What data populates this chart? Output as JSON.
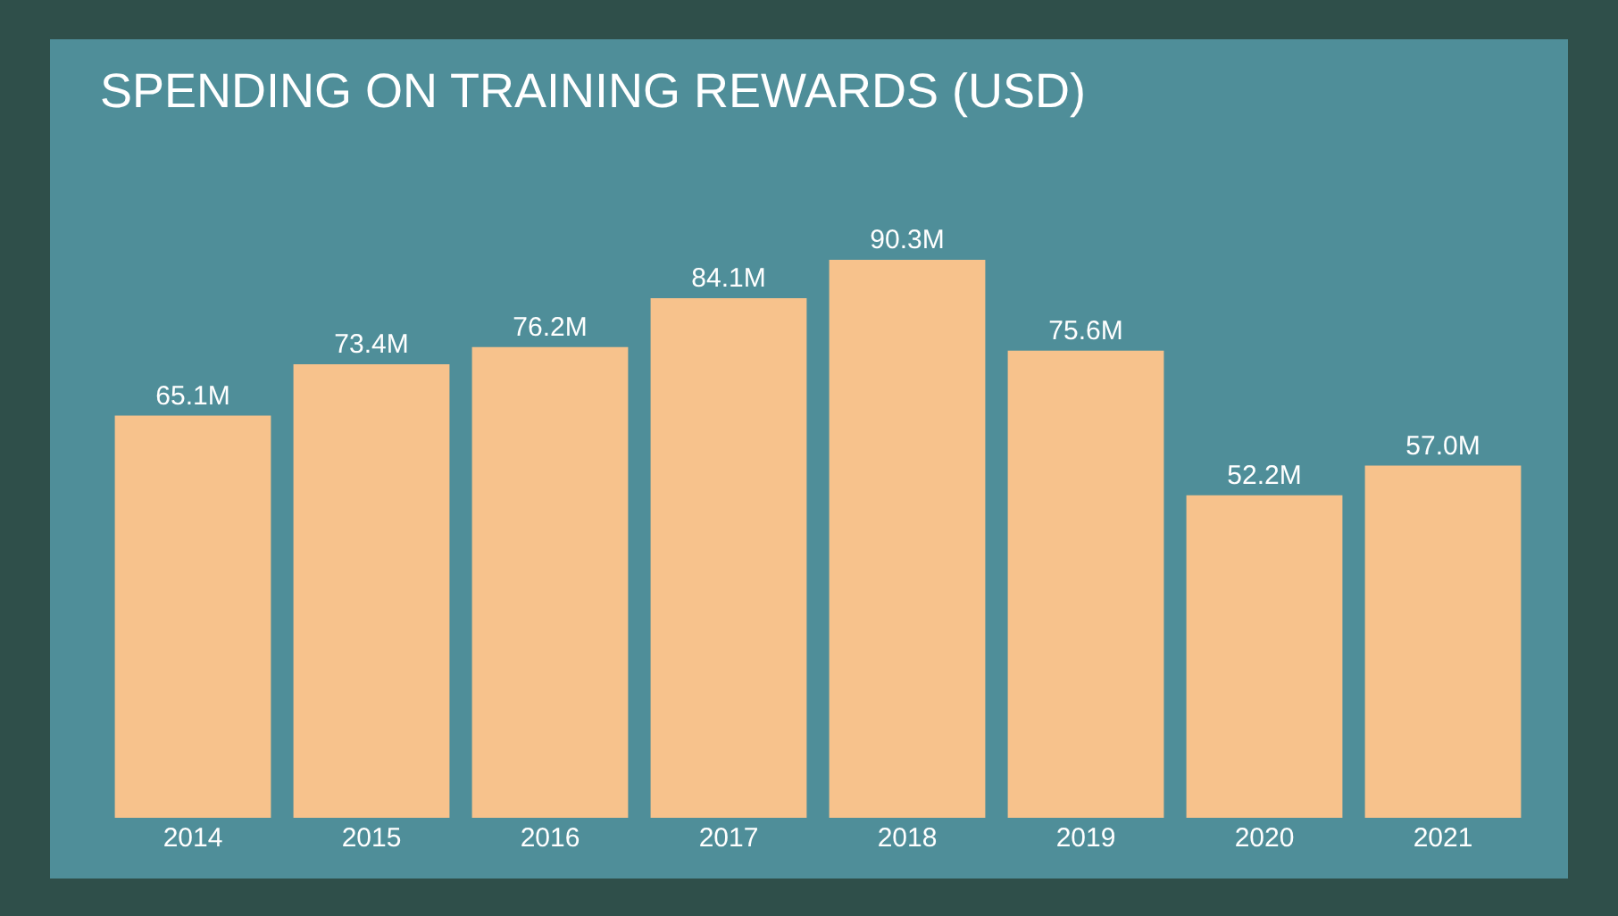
{
  "chart_data": {
    "type": "bar",
    "title": "SPENDING ON TRAINING REWARDS (USD)",
    "categories": [
      "2014",
      "2015",
      "2016",
      "2017",
      "2018",
      "2019",
      "2020",
      "2021"
    ],
    "values": [
      65.1,
      73.4,
      76.2,
      84.1,
      90.3,
      75.6,
      52.2,
      57.0
    ],
    "value_labels": [
      "65.1M",
      "73.4M",
      "76.2M",
      "84.1M",
      "90.3M",
      "75.6M",
      "52.2M",
      "57.0M"
    ],
    "color": "#f7c28c",
    "tick_labels": "x",
    "grid": false,
    "legend": false
  }
}
